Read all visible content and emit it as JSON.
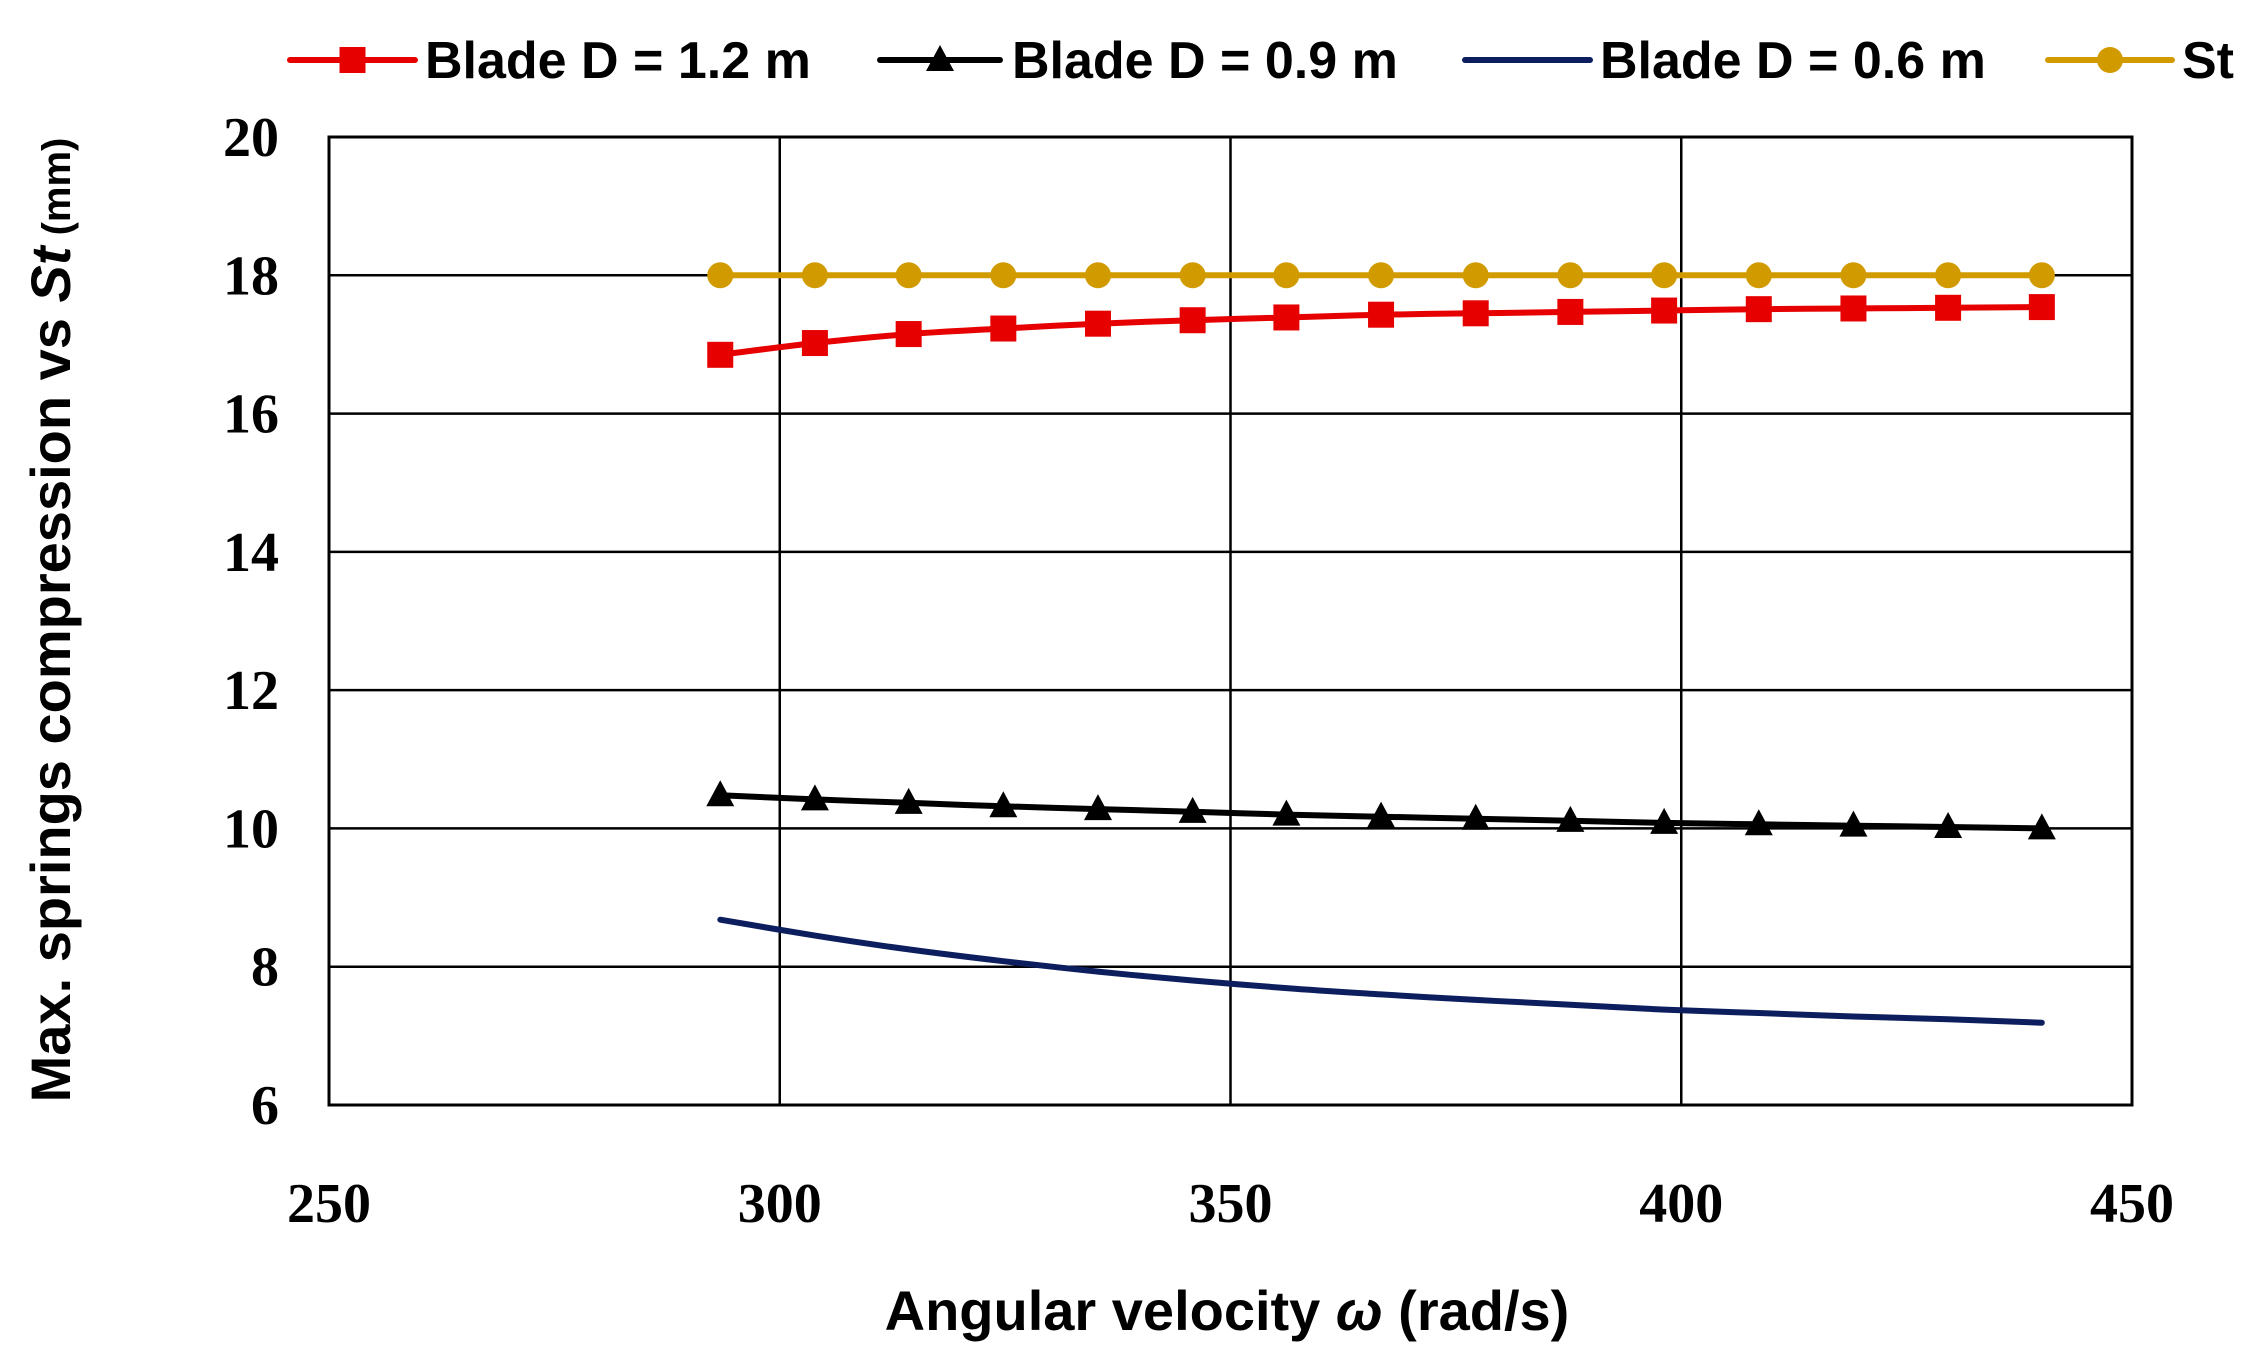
{
  "chart_data": {
    "type": "line",
    "title": "",
    "xlabel": {
      "main": "Angular velocity ",
      "symbol": "ω",
      "unit": " (rad/s)"
    },
    "ylabel": {
      "main": "Max. springs compression  vs ",
      "symbol": "St",
      "unit": " (mm)"
    },
    "xlim": [
      250,
      450
    ],
    "ylim": [
      6,
      20
    ],
    "x_ticks": [
      250,
      300,
      350,
      400,
      450
    ],
    "y_ticks": [
      6,
      8,
      10,
      12,
      14,
      16,
      18,
      20
    ],
    "grid": true,
    "legend_position": "top",
    "x": [
      293.4,
      303.9,
      314.3,
      324.8,
      335.3,
      345.8,
      356.2,
      366.7,
      377.2,
      387.7,
      398.1,
      408.6,
      419.1,
      429.6,
      440.0
    ],
    "series": [
      {
        "name": "Blade D = 1.2 m",
        "color": "#e60000",
        "marker": "square",
        "values": [
          16.85,
          17.02,
          17.15,
          17.23,
          17.3,
          17.35,
          17.39,
          17.43,
          17.45,
          17.47,
          17.49,
          17.51,
          17.52,
          17.53,
          17.54
        ]
      },
      {
        "name": "Blade D = 0.9 m",
        "color": "#000000",
        "marker": "triangle",
        "values": [
          10.48,
          10.42,
          10.37,
          10.32,
          10.28,
          10.24,
          10.2,
          10.17,
          10.14,
          10.11,
          10.08,
          10.06,
          10.04,
          10.02,
          10.0
        ]
      },
      {
        "name": "Blade D = 0.6 m",
        "color": "#0c1e5e",
        "marker": "none",
        "values": [
          8.68,
          8.45,
          8.25,
          8.08,
          7.93,
          7.8,
          7.69,
          7.6,
          7.52,
          7.45,
          7.38,
          7.33,
          7.28,
          7.24,
          7.19
        ]
      },
      {
        "name": "St",
        "color": "#d19b00",
        "marker": "circle",
        "values": [
          18,
          18,
          18,
          18,
          18,
          18,
          18,
          18,
          18,
          18,
          18,
          18,
          18,
          18,
          18
        ]
      }
    ]
  }
}
